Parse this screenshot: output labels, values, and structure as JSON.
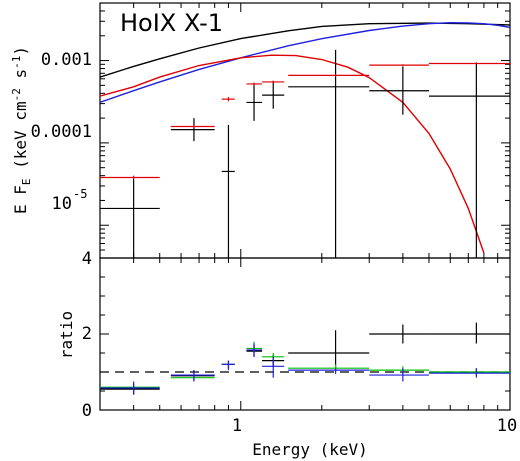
{
  "chart_data": [
    {
      "type": "scatter",
      "title": "HoIX X-1",
      "xlabel": "",
      "ylabel_main": "E F",
      "ylabel_sub": "E",
      "ylabel_units": " (keV cm",
      "ylabel_exp1": "-2",
      "ylabel_mid": " s",
      "ylabel_exp2": "-1",
      "ylabel_close": ")",
      "xscale": "log",
      "yscale": "log",
      "xlim": [
        0.3,
        10
      ],
      "ylim": [
        4e-06,
        0.005
      ],
      "y_ticks": [
        {
          "label_base": "10",
          "label_exp": "-5",
          "value": 1e-05
        },
        {
          "label_base": "0.0001",
          "label_exp": "",
          "value": 0.0001
        },
        {
          "label_base": "0.001",
          "label_exp": "",
          "value": 0.001
        },
        {
          "label_base": "4",
          "label_exp": "",
          "value": 4e-06
        }
      ],
      "series": [
        {
          "kind": "errorbars",
          "color": "#000000",
          "points": [
            {
              "x": 0.4,
              "xlo": 0.3,
              "xhi": 0.5,
              "y": 1.6e-05,
              "ylo": 4e-06,
              "yhi": 3.8e-05
            },
            {
              "x": 0.67,
              "xlo": 0.55,
              "xhi": 0.8,
              "y": 0.000145,
              "ylo": 0.000105,
              "yhi": 0.0002
            },
            {
              "x": 0.9,
              "xlo": 0.85,
              "xhi": 0.95,
              "y": 4.5e-05,
              "ylo": 4e-06,
              "yhi": 0.000165
            },
            {
              "x": 1.12,
              "xlo": 1.05,
              "xhi": 1.2,
              "y": 0.00031,
              "ylo": 0.000185,
              "yhi": 0.00052
            },
            {
              "x": 1.32,
              "xlo": 1.2,
              "xhi": 1.45,
              "y": 0.00038,
              "ylo": 0.00026,
              "yhi": 0.00055
            },
            {
              "x": 2.25,
              "xlo": 1.5,
              "xhi": 3.0,
              "y": 0.00048,
              "ylo": 4e-06,
              "yhi": 0.00135
            },
            {
              "x": 4.0,
              "xlo": 3.0,
              "xhi": 5.0,
              "y": 0.00043,
              "ylo": 0.00022,
              "yhi": 0.00085
            },
            {
              "x": 7.5,
              "xlo": 5.0,
              "xhi": 10.0,
              "y": 0.00037,
              "ylo": 4e-06,
              "yhi": 0.00095
            }
          ]
        },
        {
          "kind": "errorbars",
          "color": "#e00000",
          "points": [
            {
              "x": 0.4,
              "xlo": 0.3,
              "xhi": 0.5,
              "y": 3.8e-05,
              "ylo": 3.6e-05,
              "yhi": 4e-05
            },
            {
              "x": 0.67,
              "xlo": 0.55,
              "xhi": 0.8,
              "y": 0.000158,
              "ylo": 0.000152,
              "yhi": 0.000165
            },
            {
              "x": 0.9,
              "xlo": 0.85,
              "xhi": 0.95,
              "y": 0.00034,
              "ylo": 0.00032,
              "yhi": 0.00036
            },
            {
              "x": 1.12,
              "xlo": 1.05,
              "xhi": 1.2,
              "y": 0.00052,
              "ylo": 0.0005,
              "yhi": 0.00054
            },
            {
              "x": 1.32,
              "xlo": 1.2,
              "xhi": 1.45,
              "y": 0.00055,
              "ylo": 0.00053,
              "yhi": 0.00057
            },
            {
              "x": 2.25,
              "xlo": 1.5,
              "xhi": 3.0,
              "y": 0.00066,
              "ylo": 0.00064,
              "yhi": 0.00068
            },
            {
              "x": 4.0,
              "xlo": 3.0,
              "xhi": 5.0,
              "y": 0.00088,
              "ylo": 0.00086,
              "yhi": 0.0009
            },
            {
              "x": 7.5,
              "xlo": 5.0,
              "xhi": 10.0,
              "y": 0.00092,
              "ylo": 0.0009,
              "yhi": 0.00094
            }
          ]
        },
        {
          "kind": "curve",
          "color": "#000000",
          "x": [
            0.3,
            0.4,
            0.5,
            0.7,
            1.0,
            1.5,
            2.0,
            3.0,
            5.0,
            7.0,
            10.0
          ],
          "y": [
            0.00063,
            0.00085,
            0.00105,
            0.00142,
            0.00185,
            0.0023,
            0.0026,
            0.0028,
            0.00285,
            0.0028,
            0.0027
          ]
        },
        {
          "kind": "curve",
          "color": "#2020e0",
          "x": [
            0.3,
            0.4,
            0.5,
            0.7,
            1.0,
            1.5,
            2.0,
            3.0,
            4.0,
            5.0,
            6.0,
            7.0,
            8.0,
            9.0,
            10.0
          ],
          "y": [
            0.00031,
            0.00043,
            0.00055,
            0.00078,
            0.00108,
            0.00151,
            0.00184,
            0.00232,
            0.00262,
            0.0028,
            0.00288,
            0.00287,
            0.0028,
            0.00268,
            0.00253
          ]
        },
        {
          "kind": "curve",
          "color": "#e00000",
          "x": [
            0.3,
            0.4,
            0.5,
            0.7,
            1.0,
            1.3,
            1.6,
            2.0,
            2.5,
            3.0,
            4.0,
            5.0,
            6.0,
            7.0,
            8.0
          ],
          "y": [
            0.00037,
            0.00048,
            0.00063,
            0.00087,
            0.00108,
            0.00116,
            0.00115,
            0.00103,
            0.00083,
            0.00062,
            0.00031,
            0.00013,
            4.8e-05,
            1.6e-05,
            4.6e-06
          ]
        }
      ]
    },
    {
      "type": "scatter",
      "ylabel": "ratio",
      "xlabel": "Energy (keV)",
      "xscale": "log",
      "yscale": "linear",
      "xlim": [
        0.3,
        10
      ],
      "ylim": [
        0,
        4
      ],
      "x_ticks": [
        {
          "label": "1",
          "value": 1
        },
        {
          "label": "10",
          "value": 10
        }
      ],
      "y_ticks": [
        {
          "label": "0",
          "value": 0
        },
        {
          "label": "2",
          "value": 2
        }
      ],
      "reference_line": {
        "y": 1,
        "style": "dashed",
        "color": "#000000"
      },
      "series": [
        {
          "kind": "errorbars",
          "color": "#000000",
          "points": [
            {
              "x": 0.4,
              "xlo": 0.3,
              "xhi": 0.5,
              "y": 0.55,
              "ylo": 0.42,
              "yhi": 0.7
            },
            {
              "x": 0.67,
              "xlo": 0.55,
              "xhi": 0.8,
              "y": 0.9,
              "ylo": 0.78,
              "yhi": 1.05
            },
            {
              "x": 0.9,
              "xlo": 0.85,
              "xhi": 0.95,
              "y": 1.2,
              "ylo": 1.1,
              "yhi": 1.3
            },
            {
              "x": 1.12,
              "xlo": 1.05,
              "xhi": 1.2,
              "y": 1.55,
              "ylo": 1.4,
              "yhi": 1.7
            },
            {
              "x": 1.32,
              "xlo": 1.2,
              "xhi": 1.45,
              "y": 1.3,
              "ylo": 1.15,
              "yhi": 1.45
            },
            {
              "x": 2.25,
              "xlo": 1.5,
              "xhi": 3.0,
              "y": 1.5,
              "ylo": 1.05,
              "yhi": 2.1
            },
            {
              "x": 4.0,
              "xlo": 3.0,
              "xhi": 5.0,
              "y": 2.0,
              "ylo": 1.75,
              "yhi": 2.25
            },
            {
              "x": 7.5,
              "xlo": 5.0,
              "xhi": 10.0,
              "y": 2.0,
              "ylo": 1.75,
              "yhi": 2.3
            }
          ]
        },
        {
          "kind": "errorbars",
          "color": "#00c000",
          "points": [
            {
              "x": 0.4,
              "xlo": 0.3,
              "xhi": 0.5,
              "y": 0.6,
              "ylo": 0.55,
              "yhi": 0.65
            },
            {
              "x": 0.67,
              "xlo": 0.55,
              "xhi": 0.8,
              "y": 0.85,
              "ylo": 0.8,
              "yhi": 0.9
            },
            {
              "x": 0.9,
              "xlo": 0.85,
              "xhi": 0.95,
              "y": 1.2,
              "ylo": 1.15,
              "yhi": 1.25
            },
            {
              "x": 1.12,
              "xlo": 1.05,
              "xhi": 1.2,
              "y": 1.62,
              "ylo": 1.5,
              "yhi": 1.8
            },
            {
              "x": 1.32,
              "xlo": 1.2,
              "xhi": 1.45,
              "y": 1.4,
              "ylo": 1.3,
              "yhi": 1.5
            },
            {
              "x": 2.25,
              "xlo": 1.5,
              "xhi": 3.0,
              "y": 1.1,
              "ylo": 1.0,
              "yhi": 1.2
            },
            {
              "x": 4.0,
              "xlo": 3.0,
              "xhi": 5.0,
              "y": 1.05,
              "ylo": 0.95,
              "yhi": 1.15
            },
            {
              "x": 7.5,
              "xlo": 5.0,
              "xhi": 10.0,
              "y": 1.0,
              "ylo": 0.9,
              "yhi": 1.1
            }
          ]
        },
        {
          "kind": "errorbars",
          "color": "#2020e0",
          "points": [
            {
              "x": 0.4,
              "xlo": 0.3,
              "xhi": 0.5,
              "y": 0.58,
              "ylo": 0.4,
              "yhi": 0.75
            },
            {
              "x": 0.67,
              "xlo": 0.55,
              "xhi": 0.8,
              "y": 0.92,
              "ylo": 0.75,
              "yhi": 1.05
            },
            {
              "x": 0.9,
              "xlo": 0.85,
              "xhi": 0.95,
              "y": 1.2,
              "ylo": 1.05,
              "yhi": 1.3
            },
            {
              "x": 1.12,
              "xlo": 1.05,
              "xhi": 1.2,
              "y": 1.58,
              "ylo": 1.4,
              "yhi": 1.75
            },
            {
              "x": 1.32,
              "xlo": 1.2,
              "xhi": 1.45,
              "y": 1.15,
              "ylo": 0.85,
              "yhi": 1.4
            },
            {
              "x": 2.25,
              "xlo": 1.5,
              "xhi": 3.0,
              "y": 1.05,
              "ylo": 0.95,
              "yhi": 1.1
            },
            {
              "x": 4.0,
              "xlo": 3.0,
              "xhi": 5.0,
              "y": 0.92,
              "ylo": 0.75,
              "yhi": 1.1
            },
            {
              "x": 7.5,
              "xlo": 5.0,
              "xhi": 10.0,
              "y": 0.97,
              "ylo": 0.85,
              "yhi": 1.1
            }
          ]
        }
      ]
    }
  ]
}
